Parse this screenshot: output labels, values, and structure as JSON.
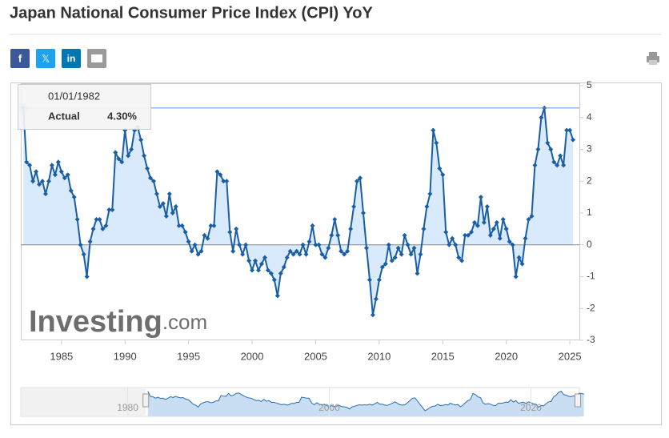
{
  "chart_data": {
    "type": "line",
    "title": "Japan National Consumer Price Index (CPI) YoY",
    "tooltip": {
      "date": "01/01/1982",
      "label": "Actual",
      "value": "4.30%"
    },
    "watermark": {
      "brand": "Investing",
      "suffix": ".com"
    },
    "x": [
      1982,
      1982.25,
      1982.5,
      1982.75,
      1983,
      1983.25,
      1983.5,
      1983.75,
      1984,
      1984.25,
      1984.5,
      1984.75,
      1985,
      1985.25,
      1985.5,
      1985.75,
      1986,
      1986.25,
      1986.5,
      1986.75,
      1987,
      1987.25,
      1987.5,
      1987.75,
      1988,
      1988.25,
      1988.5,
      1988.75,
      1989,
      1989.25,
      1989.5,
      1989.75,
      1990,
      1990.25,
      1990.5,
      1990.75,
      1991,
      1991.25,
      1991.5,
      1991.75,
      1992,
      1992.25,
      1992.5,
      1992.75,
      1993,
      1993.25,
      1993.5,
      1993.75,
      1994,
      1994.25,
      1994.5,
      1994.75,
      1995,
      1995.25,
      1995.5,
      1995.75,
      1996,
      1996.25,
      1996.5,
      1996.75,
      1997,
      1997.25,
      1997.5,
      1997.75,
      1998,
      1998.25,
      1998.5,
      1998.75,
      1999,
      1999.25,
      1999.5,
      1999.75,
      2000,
      2000.25,
      2000.5,
      2000.75,
      2001,
      2001.25,
      2001.5,
      2001.75,
      2002,
      2002.25,
      2002.5,
      2002.75,
      2003,
      2003.25,
      2003.5,
      2003.75,
      2004,
      2004.25,
      2004.5,
      2004.75,
      2005,
      2005.25,
      2005.5,
      2005.75,
      2006,
      2006.25,
      2006.5,
      2006.75,
      2007,
      2007.25,
      2007.5,
      2007.75,
      2008,
      2008.25,
      2008.5,
      2008.75,
      2009,
      2009.25,
      2009.5,
      2009.75,
      2010,
      2010.25,
      2010.5,
      2010.75,
      2011,
      2011.25,
      2011.5,
      2011.75,
      2012,
      2012.25,
      2012.5,
      2012.75,
      2013,
      2013.25,
      2013.5,
      2013.75,
      2014,
      2014.25,
      2014.5,
      2014.75,
      2015,
      2015.25,
      2015.5,
      2015.75,
      2016,
      2016.25,
      2016.5,
      2016.75,
      2017,
      2017.25,
      2017.5,
      2017.75,
      2018,
      2018.25,
      2018.5,
      2018.75,
      2019,
      2019.25,
      2019.5,
      2019.75,
      2020,
      2020.25,
      2020.5,
      2020.75,
      2021,
      2021.25,
      2021.5,
      2021.75,
      2022,
      2022.25,
      2022.5,
      2022.75,
      2023,
      2023.25,
      2023.5,
      2023.75,
      2024,
      2024.25,
      2024.5,
      2024.75,
      2025,
      2025.25
    ],
    "series": [
      {
        "name": "Actual",
        "color": "#1a5ea6",
        "fill": "#d8eafc",
        "values": [
          4.3,
          2.6,
          2.5,
          2.0,
          2.3,
          1.9,
          2.0,
          1.6,
          2.0,
          2.5,
          2.2,
          2.6,
          2.3,
          2.1,
          2.2,
          1.7,
          1.5,
          0.8,
          0.0,
          -0.3,
          -1.0,
          0.1,
          0.5,
          0.8,
          0.8,
          0.5,
          0.6,
          1.1,
          1.1,
          2.9,
          2.7,
          2.6,
          3.6,
          2.8,
          3.0,
          3.6,
          3.7,
          3.3,
          2.8,
          2.4,
          2.1,
          2.0,
          1.6,
          1.2,
          1.3,
          0.9,
          1.6,
          1.0,
          1.2,
          0.6,
          0.6,
          0.4,
          0.1,
          -0.2,
          0.0,
          -0.3,
          -0.2,
          0.3,
          0.2,
          0.6,
          0.6,
          2.3,
          2.2,
          2.0,
          2.0,
          0.4,
          -0.2,
          0.5,
          0.0,
          -0.3,
          0.0,
          -0.5,
          -0.8,
          -0.5,
          -0.8,
          -0.6,
          -0.4,
          -0.8,
          -0.9,
          -1.1,
          -1.6,
          -0.9,
          -0.7,
          -0.4,
          -0.2,
          -0.3,
          -0.2,
          -0.3,
          0.0,
          -0.3,
          0.1,
          0.6,
          0.0,
          0.0,
          -0.3,
          -0.4,
          -0.1,
          0.3,
          0.8,
          0.3,
          -0.2,
          -0.3,
          -0.2,
          0.5,
          1.2,
          2.0,
          2.1,
          1.0,
          -0.1,
          -1.1,
          -2.2,
          -1.7,
          -1.1,
          -0.7,
          -0.6,
          0.0,
          -0.5,
          -0.4,
          -0.1,
          -0.3,
          0.3,
          0.0,
          -0.3,
          -0.1,
          -0.9,
          -0.3,
          0.5,
          1.2,
          1.6,
          3.6,
          3.2,
          2.4,
          2.2,
          0.4,
          0.0,
          0.2,
          0.0,
          -0.4,
          -0.5,
          0.3,
          0.3,
          0.4,
          0.7,
          0.6,
          1.5,
          0.7,
          1.2,
          0.3,
          0.5,
          0.7,
          0.2,
          0.8,
          0.5,
          0.1,
          0.0,
          -1.0,
          -0.4,
          -0.6,
          0.2,
          0.8,
          0.9,
          2.5,
          3.0,
          4.0,
          4.3,
          3.2,
          3.0,
          2.6,
          2.5,
          2.8,
          2.5,
          3.6,
          3.6,
          3.3
        ]
      }
    ],
    "xlim": [
      1981.8,
      2025.75
    ],
    "xticks": [
      1985,
      1990,
      1995,
      2000,
      2005,
      2010,
      2015,
      2020,
      2025
    ],
    "ylim": [
      -3,
      5
    ],
    "yticks": [
      -3,
      -2,
      -1,
      0,
      1,
      2,
      3,
      4,
      5
    ],
    "navigator": {
      "xlim": [
        1969.4,
        2024.8
      ],
      "xticks": [
        1980,
        2000,
        2020
      ]
    }
  }
}
